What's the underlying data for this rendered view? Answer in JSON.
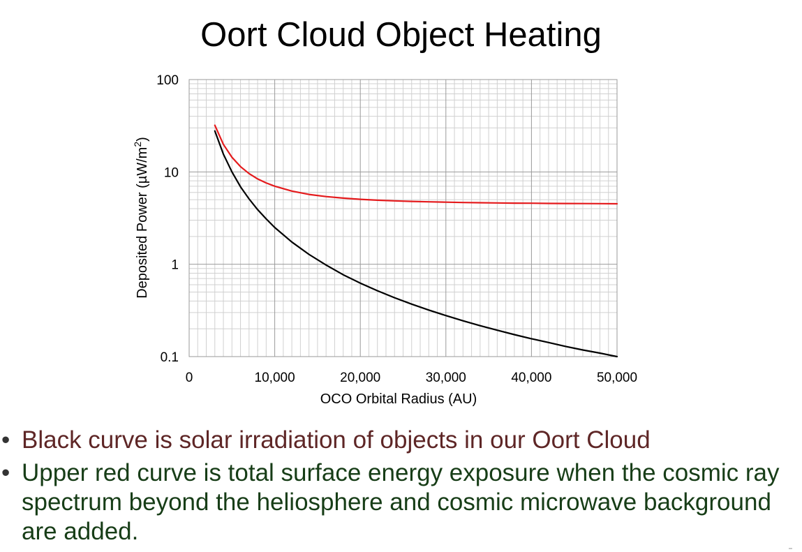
{
  "slide": {
    "title": "Oort Cloud Object Heating"
  },
  "chart_data": {
    "type": "line",
    "title": "",
    "xlabel": "OCO Orbital Radius (AU)",
    "ylabel_prefix": "Deposited Power (µW/m",
    "ylabel_sup": "2",
    "ylabel_suffix": ")",
    "xscale": "linear",
    "yscale": "log",
    "xlim": [
      0,
      50000
    ],
    "ylim": [
      0.1,
      100
    ],
    "x_ticks": [
      0,
      10000,
      20000,
      30000,
      40000,
      50000
    ],
    "x_tick_labels": [
      "0",
      "10,000",
      "20,000",
      "30,000",
      "40,000",
      "50,000"
    ],
    "y_ticks": [
      0.1,
      1,
      10,
      100
    ],
    "y_tick_labels": [
      "0.1",
      "1",
      "10",
      "100"
    ],
    "grid": true,
    "x": [
      3000,
      4000,
      5000,
      6000,
      7000,
      8000,
      9000,
      10000,
      12000,
      14000,
      16000,
      18000,
      20000,
      22000,
      24000,
      26000,
      28000,
      30000,
      32000,
      34000,
      36000,
      38000,
      40000,
      42000,
      44000,
      46000,
      48000,
      50000
    ],
    "series": [
      {
        "name": "Solar irradiation",
        "color": "#000000",
        "values": [
          27.8,
          15.6,
          10.0,
          6.9,
          5.1,
          3.9,
          3.1,
          2.5,
          1.74,
          1.28,
          0.98,
          0.77,
          0.625,
          0.517,
          0.434,
          0.37,
          0.319,
          0.278,
          0.244,
          0.216,
          0.193,
          0.173,
          0.156,
          0.142,
          0.129,
          0.118,
          0.109,
          0.1
        ]
      },
      {
        "name": "Total surface energy exposure",
        "color": "#e41a1c",
        "values": [
          32.0,
          19.9,
          14.4,
          11.4,
          9.6,
          8.4,
          7.6,
          7.0,
          6.2,
          5.7,
          5.4,
          5.2,
          5.05,
          4.94,
          4.86,
          4.79,
          4.74,
          4.7,
          4.66,
          4.64,
          4.61,
          4.59,
          4.58,
          4.56,
          4.55,
          4.54,
          4.53,
          4.52
        ]
      }
    ]
  },
  "bullets": [
    {
      "marker": "•",
      "text": "Black curve is solar irradiation of objects in our Oort Cloud",
      "color": "#5e2626"
    },
    {
      "marker": "•",
      "text": "Upper red curve is total surface energy exposure when the cosmic ray spectrum beyond the heliosphere and cosmic microwave background are added.",
      "color": "#173d17"
    }
  ]
}
